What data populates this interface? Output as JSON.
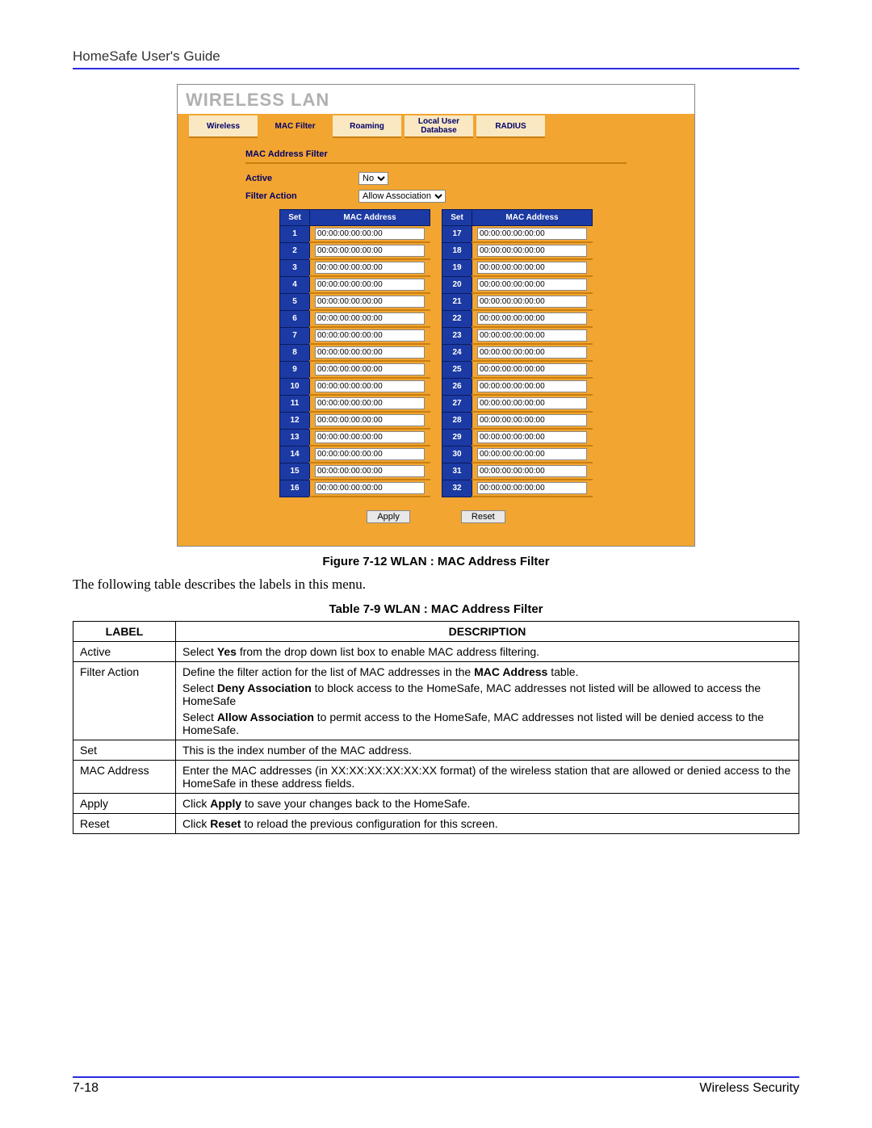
{
  "header": {
    "doc_title": "HomeSafe User's Guide"
  },
  "screenshot": {
    "title": "WIRELESS LAN",
    "tabs": [
      {
        "label": "Wireless",
        "active": false
      },
      {
        "label": "MAC Filter",
        "active": true
      },
      {
        "label": "Roaming",
        "active": false
      },
      {
        "label": "Local User\nDatabase",
        "active": false
      },
      {
        "label": "RADIUS",
        "active": false
      }
    ],
    "panel_title": "MAC Address Filter",
    "form": {
      "active_label": "Active",
      "active_value": "No",
      "filter_action_label": "Filter Action",
      "filter_action_value": "Allow Association"
    },
    "table_headers": {
      "set": "Set",
      "mac": "MAC Address"
    },
    "left_rows": [
      {
        "n": 1,
        "v": "00:00:00:00:00:00"
      },
      {
        "n": 2,
        "v": "00:00:00:00:00:00"
      },
      {
        "n": 3,
        "v": "00:00:00:00:00:00"
      },
      {
        "n": 4,
        "v": "00:00:00:00:00:00"
      },
      {
        "n": 5,
        "v": "00:00:00:00:00:00"
      },
      {
        "n": 6,
        "v": "00:00:00:00:00:00"
      },
      {
        "n": 7,
        "v": "00:00:00:00:00:00"
      },
      {
        "n": 8,
        "v": "00:00:00:00:00:00"
      },
      {
        "n": 9,
        "v": "00:00:00:00:00:00"
      },
      {
        "n": 10,
        "v": "00:00:00:00:00:00"
      },
      {
        "n": 11,
        "v": "00:00:00:00:00:00"
      },
      {
        "n": 12,
        "v": "00:00:00:00:00:00"
      },
      {
        "n": 13,
        "v": "00:00:00:00:00:00"
      },
      {
        "n": 14,
        "v": "00:00:00:00:00:00"
      },
      {
        "n": 15,
        "v": "00:00:00:00:00:00"
      },
      {
        "n": 16,
        "v": "00:00:00:00:00:00"
      }
    ],
    "right_rows": [
      {
        "n": 17,
        "v": "00:00:00:00:00:00"
      },
      {
        "n": 18,
        "v": "00:00:00:00:00:00"
      },
      {
        "n": 19,
        "v": "00:00:00:00:00:00"
      },
      {
        "n": 20,
        "v": "00:00:00:00:00:00"
      },
      {
        "n": 21,
        "v": "00:00:00:00:00:00"
      },
      {
        "n": 22,
        "v": "00:00:00:00:00:00"
      },
      {
        "n": 23,
        "v": "00:00:00:00:00:00"
      },
      {
        "n": 24,
        "v": "00:00:00:00:00:00"
      },
      {
        "n": 25,
        "v": "00:00:00:00:00:00"
      },
      {
        "n": 26,
        "v": "00:00:00:00:00:00"
      },
      {
        "n": 27,
        "v": "00:00:00:00:00:00"
      },
      {
        "n": 28,
        "v": "00:00:00:00:00:00"
      },
      {
        "n": 29,
        "v": "00:00:00:00:00:00"
      },
      {
        "n": 30,
        "v": "00:00:00:00:00:00"
      },
      {
        "n": 31,
        "v": "00:00:00:00:00:00"
      },
      {
        "n": 32,
        "v": "00:00:00:00:00:00"
      }
    ],
    "buttons": {
      "apply": "Apply",
      "reset": "Reset"
    }
  },
  "figure_caption": "Figure 7-12 WLAN : MAC Address Filter",
  "body_text": "The following table describes the labels in this menu.",
  "table_caption": "Table 7-9 WLAN : MAC Address Filter",
  "desc_table": {
    "headers": {
      "label": "LABEL",
      "desc": "DESCRIPTION"
    },
    "rows": [
      {
        "label": "Active",
        "desc_html": "Select <b>Yes</b> from the drop down list box to enable MAC address filtering."
      },
      {
        "label": "Filter Action",
        "desc_html": "<p>Define the filter action for the list of MAC addresses in the <b>MAC Address</b> table.</p><p>Select <b>Deny Association</b> to block access to the HomeSafe, MAC addresses not listed will be allowed to access the HomeSafe</p><p>Select <b>Allow Association</b> to permit access to the HomeSafe, MAC addresses not listed will be denied access to the HomeSafe.</p>"
      },
      {
        "label": "Set",
        "desc_html": "This is the index number of the MAC address."
      },
      {
        "label": "MAC Address",
        "desc_html": "Enter the MAC addresses (in XX:XX:XX:XX:XX:XX format) of the wireless station that are allowed or denied access to the HomeSafe in these address fields."
      },
      {
        "label": "Apply",
        "desc_html": "Click <b>Apply</b> to save your changes back to the HomeSafe."
      },
      {
        "label": "Reset",
        "desc_html": "Click <b>Reset</b> to reload the previous configuration for this screen."
      }
    ]
  },
  "footer": {
    "page_num": "7-18",
    "section": "Wireless Security"
  }
}
